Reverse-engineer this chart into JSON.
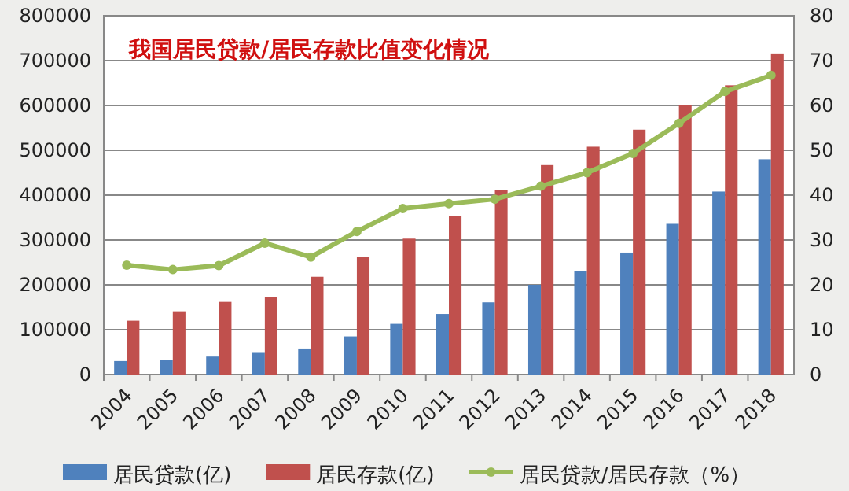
{
  "chart_data": {
    "type": "bar",
    "title": "我国居民贷款/居民存款比值变化情况",
    "categories": [
      "2004",
      "2005",
      "2006",
      "2007",
      "2008",
      "2009",
      "2010",
      "2011",
      "2012",
      "2013",
      "2014",
      "2015",
      "2016",
      "2017",
      "2018"
    ],
    "series": [
      {
        "name": "居民贷款(亿)",
        "color": "#4f81bd",
        "values": [
          30000,
          33000,
          40000,
          50000,
          58000,
          85000,
          113000,
          135000,
          161000,
          200000,
          230000,
          272000,
          336000,
          408000,
          480000
        ]
      },
      {
        "name": "居民存款(亿)",
        "color": "#c0504d",
        "values": [
          120000,
          141000,
          162000,
          173000,
          218000,
          262000,
          303000,
          353000,
          411000,
          467000,
          508000,
          546000,
          600000,
          645000,
          716000
        ]
      },
      {
        "name": "居民贷款/居民存款（%）",
        "type": "line",
        "axis": "y2",
        "marker": "circle",
        "color": "#9bbb59",
        "values": [
          24.4,
          23.4,
          24.3,
          29.3,
          26.2,
          31.9,
          37.0,
          38.1,
          39.1,
          42.0,
          45.0,
          49.3,
          56.0,
          63.1,
          66.7
        ]
      }
    ],
    "ylim": [
      0,
      800000
    ],
    "yticks": [
      0,
      100000,
      200000,
      300000,
      400000,
      500000,
      600000,
      700000,
      800000
    ],
    "y2lim": [
      0,
      80
    ],
    "y2ticks": [
      0,
      10,
      20,
      30,
      40,
      50,
      60,
      70,
      80
    ],
    "grid": "y",
    "legend": "bottom"
  }
}
